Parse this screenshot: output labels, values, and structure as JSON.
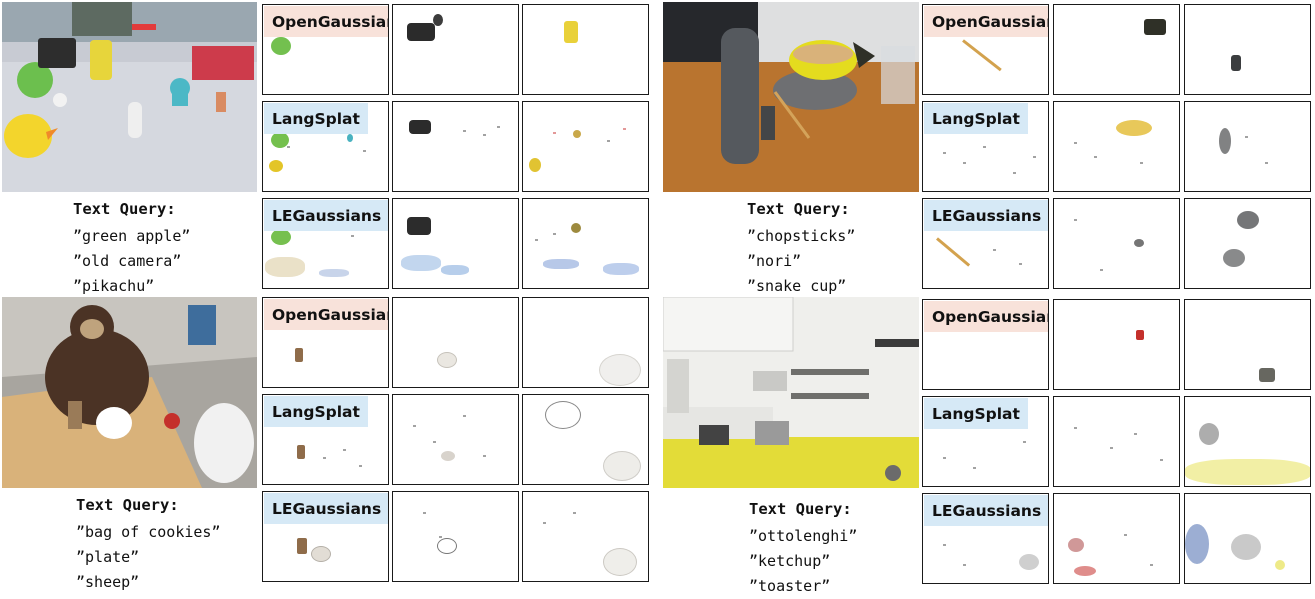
{
  "methods": {
    "opengaussian": "OpenGaussian",
    "langsplat": "LangSplat",
    "legaussians": "LEGaussians"
  },
  "query_title": "Text Query:",
  "scenes": [
    {
      "queries": [
        "”green apple”",
        "”old camera”",
        "”pikachu”"
      ],
      "photo_colors": [
        "#c9ccd3",
        "#e6d94a",
        "#72c45a"
      ]
    },
    {
      "queries": [
        "”chopsticks”",
        "”nori”",
        "”snake cup”"
      ],
      "photo_colors": [
        "#b7742d",
        "#e6d21c",
        "#5a5f66"
      ]
    },
    {
      "queries": [
        "”bag of cookies”",
        "”plate”",
        "”sheep”"
      ],
      "photo_colors": [
        "#d9b27a",
        "#4b3325",
        "#f3f3f3"
      ]
    },
    {
      "queries": [
        "”ottolenghi”",
        "”ketchup”",
        "”toaster”"
      ],
      "photo_colors": [
        "#f1f1ee",
        "#e3dc38",
        "#9a9a9a"
      ]
    }
  ]
}
